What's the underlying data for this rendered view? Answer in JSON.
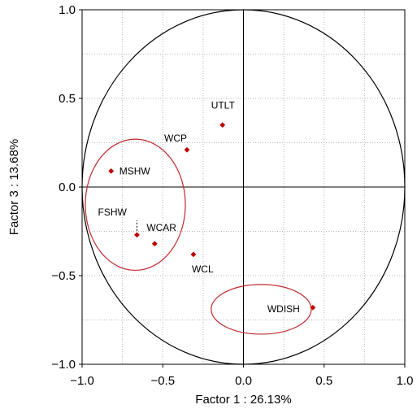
{
  "chart_data": {
    "type": "scatter",
    "title": "",
    "xlabel": "Factor 1 : 26.13%",
    "ylabel": "Factor 3 : 13.68%",
    "xlim": [
      -1.0,
      1.0
    ],
    "ylim": [
      -1.0,
      1.0
    ],
    "xticks": [
      -1.0,
      -0.5,
      0.0,
      0.5,
      1.0
    ],
    "yticks": [
      -1.0,
      -0.5,
      0.0,
      0.5,
      1.0
    ],
    "xtick_labels": [
      "−1.0",
      "−0.5",
      "0.0",
      "0.5",
      "1.0"
    ],
    "ytick_labels": [
      "−1.0",
      "−0.5",
      "0.0",
      "0.5",
      "1.0"
    ],
    "grid": true,
    "unit_circle": true,
    "point_color": "#c00000",
    "ellipse_color": "#c0282d",
    "points": [
      {
        "label": "UTLT",
        "x": -0.13,
        "y": 0.35
      },
      {
        "label": "WCP",
        "x": -0.35,
        "y": 0.21
      },
      {
        "label": "MSHW",
        "x": -0.82,
        "y": 0.09
      },
      {
        "label": "FSHW",
        "x": -0.66,
        "y": -0.27
      },
      {
        "label": "WCAR",
        "x": -0.55,
        "y": -0.32
      },
      {
        "label": "WCL",
        "x": -0.31,
        "y": -0.38
      },
      {
        "label": "WDISH",
        "x": 0.43,
        "y": -0.68
      }
    ],
    "ellipses": [
      {
        "cx": -0.67,
        "cy": -0.1,
        "rx": 0.31,
        "ry": 0.37
      },
      {
        "cx": 0.11,
        "cy": -0.69,
        "rx": 0.31,
        "ry": 0.14
      }
    ]
  }
}
